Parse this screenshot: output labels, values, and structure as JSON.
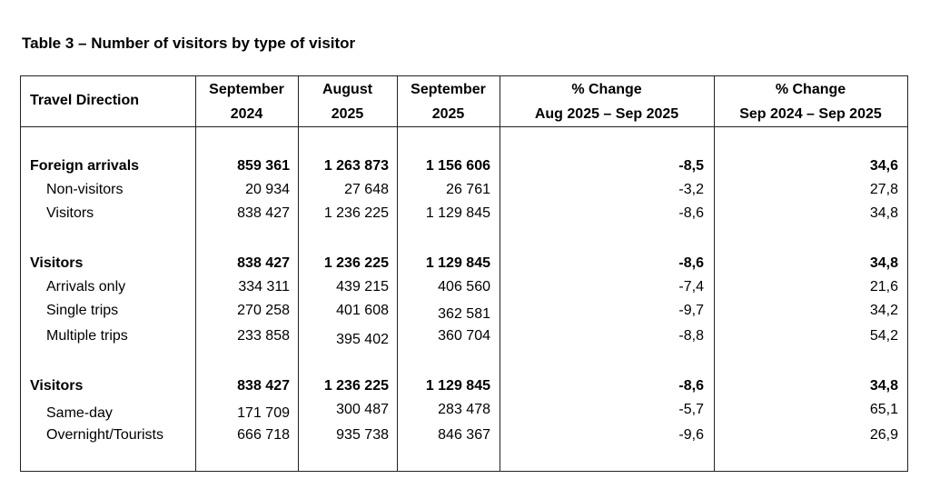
{
  "caption": "Table 3 – Number of visitors by type of visitor",
  "headers": {
    "direction": "Travel Direction",
    "col1_line1": "September",
    "col1_line2": "2024",
    "col2_line1": "August",
    "col2_line2": "2025",
    "col3_line1": "September",
    "col3_line2": "2025",
    "col4_line1": "% Change",
    "col4_line2": "Aug 2025 – Sep 2025",
    "col5_line1": "% Change",
    "col5_line2": "Sep 2024 – Sep 2025"
  },
  "rows": [
    {
      "label": "Foreign arrivals",
      "sep2024": "859 361",
      "aug2025": "1 263 873",
      "sep2025": "1 156 606",
      "chg_aug_sep": "-8,5",
      "chg_yoy": "34,6"
    },
    {
      "label": "Non-visitors",
      "sep2024": "20 934",
      "aug2025": "27 648",
      "sep2025": "26 761",
      "chg_aug_sep": "-3,2",
      "chg_yoy": "27,8"
    },
    {
      "label": "Visitors",
      "sep2024": "838 427",
      "aug2025": "1 236 225",
      "sep2025": "1 129 845",
      "chg_aug_sep": "-8,6",
      "chg_yoy": "34,8"
    },
    {
      "label": "Visitors",
      "sep2024": "838 427",
      "aug2025": "1 236 225",
      "sep2025": "1 129 845",
      "chg_aug_sep": "-8,6",
      "chg_yoy": "34,8"
    },
    {
      "label": "Arrivals only",
      "sep2024": "334 311",
      "aug2025": "439 215",
      "sep2025": "406 560",
      "chg_aug_sep": "-7,4",
      "chg_yoy": "21,6"
    },
    {
      "label": "Single trips",
      "sep2024": "270 258",
      "aug2025": "401 608",
      "sep2025": "362 581",
      "chg_aug_sep": "-9,7",
      "chg_yoy": "34,2"
    },
    {
      "label": "Multiple trips",
      "sep2024": "233 858",
      "aug2025": "395 402",
      "sep2025": "360 704",
      "chg_aug_sep": "-8,8",
      "chg_yoy": "54,2"
    },
    {
      "label": "Visitors",
      "sep2024": "838 427",
      "aug2025": "1 236 225",
      "sep2025": "1 129 845",
      "chg_aug_sep": "-8,6",
      "chg_yoy": "34,8"
    },
    {
      "label": "Same-day",
      "sep2024": "171 709",
      "aug2025": "300 487",
      "sep2025": "283 478",
      "chg_aug_sep": "-5,7",
      "chg_yoy": "65,1"
    },
    {
      "label": "Overnight/Tourists",
      "sep2024": "666 718",
      "aug2025": "935 738",
      "sep2025": "846 367",
      "chg_aug_sep": "-9,6",
      "chg_yoy": "26,9"
    }
  ]
}
